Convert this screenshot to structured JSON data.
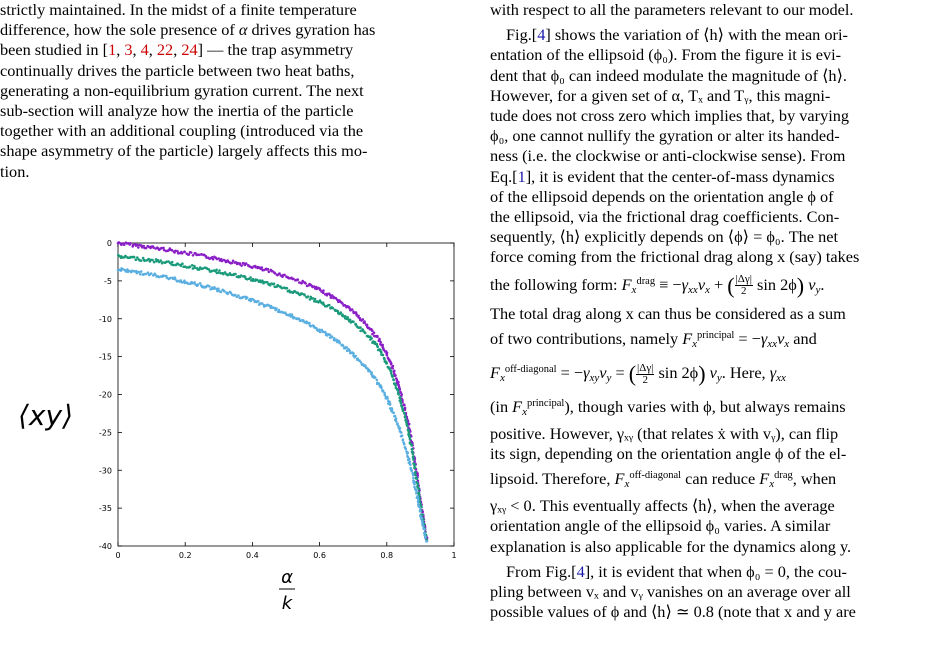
{
  "left_text": {
    "l1": "strictly maintained. In the midst of a finite temperature",
    "l2": "difference, how the sole presence of",
    "alpha": "α",
    "l2b": "drives gyration has",
    "l3a": "been studied in [",
    "cites": [
      "1",
      "3",
      "4",
      "22",
      "24"
    ],
    "l3b": "] — the trap asymmetry",
    "l4": "continually drives the particle between two heat baths,",
    "l5": "generating a non-equilibrium gyration current. The next",
    "l6": "sub-section will analyze how the inertia of the particle",
    "l7": "together with an additional coupling (introduced via the",
    "l8": "shape asymmetry of the particle) largely affects this mo-",
    "l9": "tion."
  },
  "right_text": {
    "r1": "with respect to all the parameters relevant to our model.",
    "r2a": "Fig.[",
    "fig_ref": "4",
    "r2b": "] shows the variation of ⟨h⟩ with the mean ori-",
    "r3": "entation of the ellipsoid (ϕ₀). From the figure it is evi-",
    "r4": "dent that ϕ₀ can indeed modulate the magnitude of ⟨h⟩.",
    "r5": "However, for a given set of α, Tₓ and Tᵧ, this magni-",
    "r6": "tude does not cross zero which implies that, by varying",
    "r7": "ϕ₀, one cannot nullify the gyration or alter its handed-",
    "r8": "ness (i.e. the clockwise or anti-clockwise sense). From",
    "r9a": "Eq.[",
    "eq_ref": "1",
    "r9b": "], it is evident that the center-of-mass dynamics",
    "r10": "of the ellipsoid depends on the orientation angle ϕ of",
    "r11": "the ellipsoid, via the frictional drag coefficients. Con-",
    "r12": "sequently, ⟨h⟩ explicitly depends on ⟨ϕ⟩ = ϕ₀. The net",
    "r13": "force coming from the frictional drag along x (say) takes",
    "r14a": "the following form:",
    "r15": "The total drag along x can thus be considered as a sum",
    "r16a": "of two contributions, namely",
    "r16b": "and",
    "r18a": "(in",
    "r18b": "), though varies with ϕ, but always remains",
    "r19": "positive. However, γₓᵧ (that relates ẋ with vᵧ), can flip",
    "r20": "its sign, depending on the orientation angle ϕ of the el-",
    "r21a": "lipsoid. Therefore,",
    "r21b": "can reduce",
    "r21c": ", when",
    "r22": "γₓᵧ < 0. This eventually affects ⟨h⟩, when the average",
    "r23": "orientation angle of the ellipsoid ϕ₀ varies. A similar",
    "r24": "explanation is also applicable for the dynamics along y.",
    "r25a": "From Fig.[",
    "r25b": "], it is evident that when ϕ₀ = 0, the cou-",
    "r26": "pling between vₓ and vᵧ vanishes on an average over all",
    "r27": "possible values of ϕ and ⟨h⟩ ≃ 0.8 (note that x and y are",
    "sup_drag": "drag",
    "sup_principal": "principal",
    "sup_offdiag": "off-diagonal",
    "frac_num": "|Δγ|",
    "frac_den": "2",
    "sin": "sin 2ϕ",
    "here": ". Here,"
  },
  "chart_data": {
    "type": "scatter",
    "ylabel": "⟨xy⟩",
    "xlabel_num": "α",
    "xlabel_den": "k",
    "xlim": [
      0,
      1
    ],
    "ylim": [
      -40,
      0
    ],
    "xticks": [
      "0",
      "0.2",
      "0.4",
      "0.6",
      "0.8",
      "1"
    ],
    "yticks": [
      "0",
      "-5",
      "-10",
      "-15",
      "-20",
      "-25",
      "-30",
      "-35",
      "-40"
    ],
    "series": [
      {
        "color": "#8a1fc7",
        "x": [
          0,
          0.05,
          0.1,
          0.15,
          0.2,
          0.25,
          0.3,
          0.35,
          0.4,
          0.45,
          0.5,
          0.55,
          0.6,
          0.65,
          0.7,
          0.75,
          0.78,
          0.8,
          0.82,
          0.84,
          0.86,
          0.87,
          0.88,
          0.89,
          0.9,
          0.91,
          0.92
        ],
        "y": [
          0,
          -0.3,
          -0.6,
          -0.9,
          -1.3,
          -1.7,
          -2.1,
          -2.6,
          -3.1,
          -3.7,
          -4.4,
          -5.2,
          -6.2,
          -7.4,
          -9.0,
          -11.3,
          -13.0,
          -14.7,
          -16.8,
          -19.5,
          -23.0,
          -25.2,
          -27.8,
          -30.6,
          -33.8,
          -36.8,
          -39.5
        ]
      },
      {
        "color": "#1a9a7a",
        "x": [
          0,
          0.05,
          0.1,
          0.15,
          0.2,
          0.25,
          0.3,
          0.35,
          0.4,
          0.45,
          0.5,
          0.55,
          0.6,
          0.65,
          0.7,
          0.75,
          0.78,
          0.8,
          0.82,
          0.84,
          0.86,
          0.87,
          0.88,
          0.89,
          0.9,
          0.91,
          0.92
        ],
        "y": [
          -1.8,
          -2.0,
          -2.3,
          -2.6,
          -3.0,
          -3.4,
          -3.8,
          -4.3,
          -4.8,
          -5.4,
          -6.1,
          -6.9,
          -7.8,
          -8.9,
          -10.5,
          -12.5,
          -14.2,
          -15.9,
          -18.0,
          -20.6,
          -24.0,
          -26.2,
          -28.7,
          -31.5,
          -34.6,
          -37.3,
          -39.5
        ]
      },
      {
        "color": "#5aaee0",
        "x": [
          0,
          0.05,
          0.1,
          0.15,
          0.2,
          0.25,
          0.3,
          0.35,
          0.4,
          0.45,
          0.5,
          0.55,
          0.6,
          0.65,
          0.7,
          0.75,
          0.78,
          0.8,
          0.82,
          0.84,
          0.86,
          0.87,
          0.88,
          0.89,
          0.9,
          0.91,
          0.92
        ],
        "y": [
          -3.5,
          -3.8,
          -4.2,
          -4.6,
          -5.1,
          -5.6,
          -6.2,
          -6.9,
          -7.6,
          -8.4,
          -9.3,
          -10.3,
          -11.5,
          -12.9,
          -14.7,
          -17.0,
          -18.8,
          -20.5,
          -22.5,
          -24.8,
          -27.6,
          -29.3,
          -31.2,
          -33.3,
          -35.6,
          -37.7,
          -39.6
        ]
      }
    ]
  }
}
